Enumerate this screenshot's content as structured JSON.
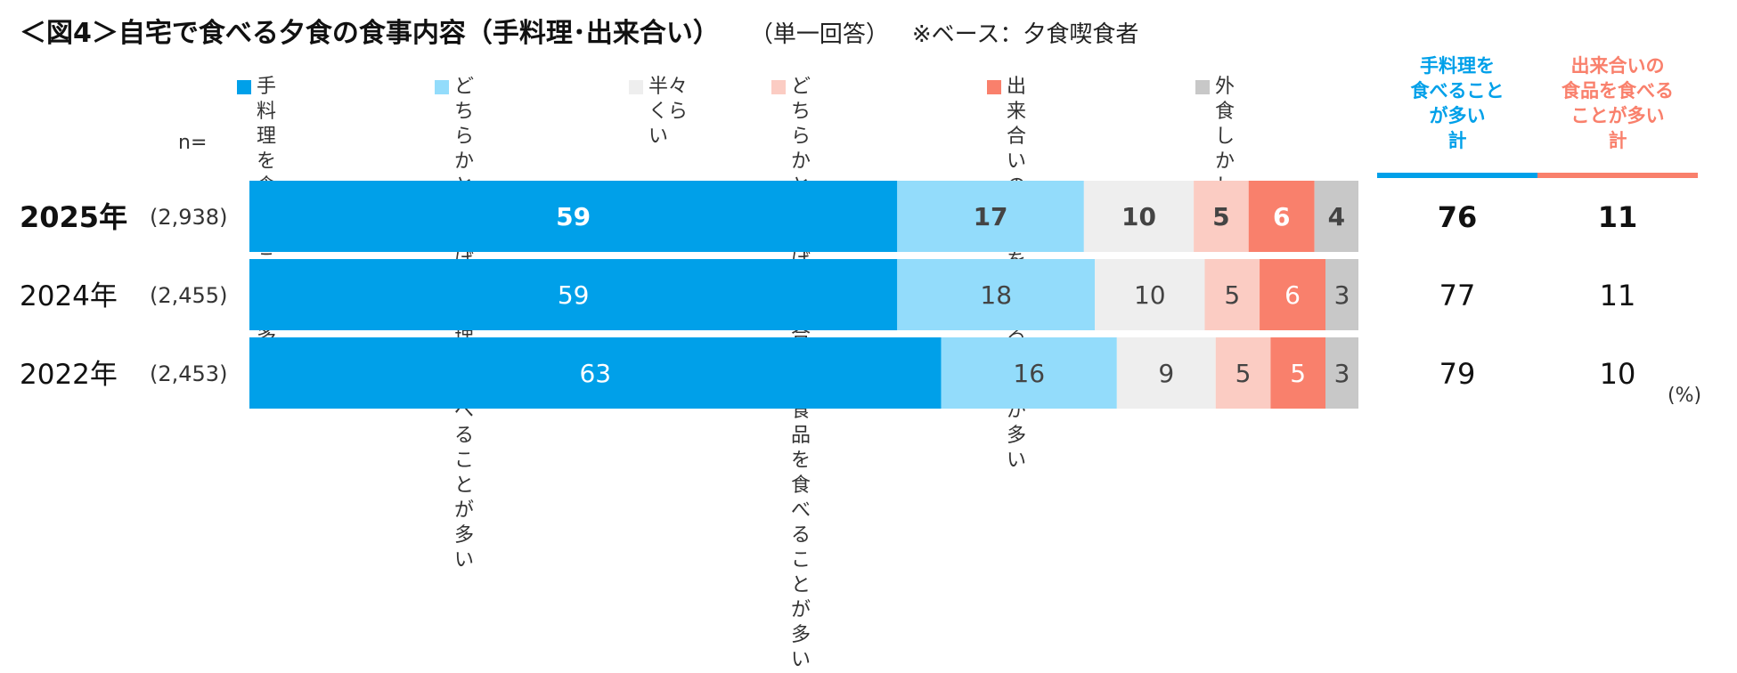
{
  "title": "＜図4＞自宅で食べる夕食の食事内容（手料理･出来合い）",
  "subtitle": "（単一回答）",
  "base_note": "※ベース：夕食喫食者",
  "n_label": "n=",
  "unit_note": "(%)",
  "colors": {
    "homemade": "#00a0e9",
    "rather_homemade": "#93dcfb",
    "half": "#eeeeee",
    "rather_readymade": "#fbccc3",
    "readymade": "#f9806c",
    "no_eat": "#c8c8c8",
    "total_homemade": "#00a0e9",
    "total_readymade": "#f9806c"
  },
  "legend": [
    {
      "label": "手料理を\n食べることが多い",
      "color_key": "homemade"
    },
    {
      "label": "どちらかといえば\n手料理を\n食べることが多い",
      "color_key": "rather_homemade"
    },
    {
      "label": "半々くらい",
      "color_key": "half"
    },
    {
      "label": "どちらかといえば\n出来合いの食品を\n食べることが多い",
      "color_key": "rather_readymade"
    },
    {
      "label": "出来合いの食品を\n食べることが多い",
      "color_key": "readymade"
    },
    {
      "label": "外食しかしない",
      "color_key": "no_eat"
    }
  ],
  "totals_header": [
    {
      "label": "手料理を\n食べること\nが多い\n計",
      "color_key": "total_homemade"
    },
    {
      "label": "出来合いの\n食品を食べる\nことが多い\n計",
      "color_key": "total_readymade"
    }
  ],
  "chart_data": {
    "type": "bar",
    "orientation": "horizontal",
    "stacked": true,
    "categories": [
      "2025年",
      "2024年",
      "2022年"
    ],
    "n": [
      "(2,938)",
      "(2,455)",
      "(2,453)"
    ],
    "series": [
      {
        "name": "手料理を食べることが多い",
        "values": [
          59,
          59,
          63
        ]
      },
      {
        "name": "どちらかといえば手料理を食べることが多い",
        "values": [
          17,
          18,
          16
        ]
      },
      {
        "name": "半々くらい",
        "values": [
          10,
          10,
          9
        ]
      },
      {
        "name": "どちらかといえば出来合いの食品を食べることが多い",
        "values": [
          5,
          5,
          5
        ]
      },
      {
        "name": "出来合いの食品を食べることが多い",
        "values": [
          6,
          6,
          5
        ]
      },
      {
        "name": "外食しかしない",
        "values": [
          4,
          3,
          3
        ]
      }
    ],
    "totals": {
      "homemade": [
        76,
        77,
        79
      ],
      "readymade": [
        11,
        11,
        10
      ]
    },
    "xlim": [
      0,
      100
    ],
    "emphasized_category": "2025年",
    "legend_position": "top"
  }
}
